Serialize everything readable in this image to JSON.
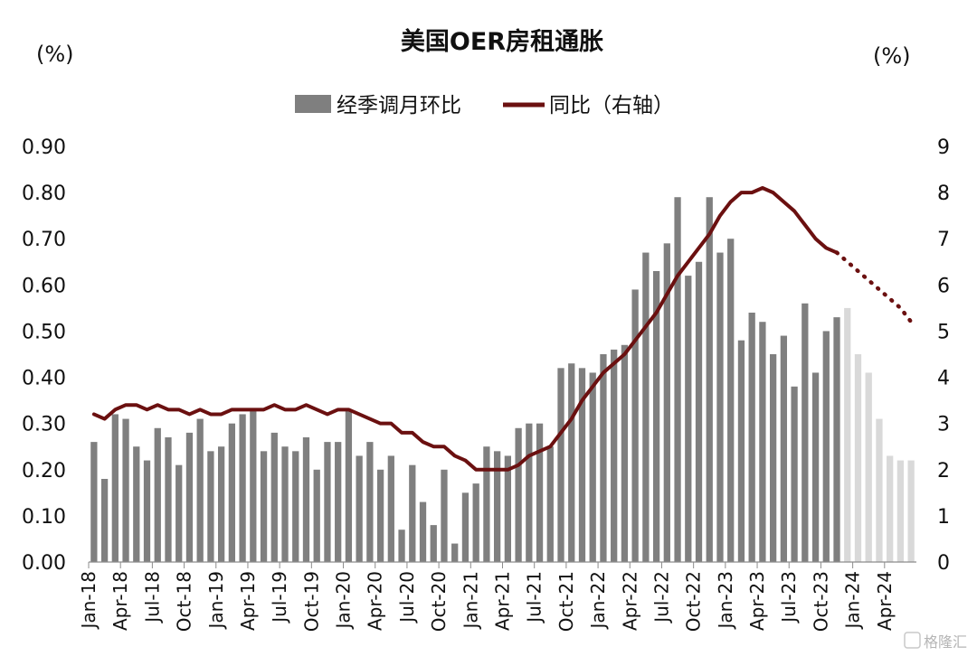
{
  "chart_data": {
    "type": "bar",
    "title": "美国OER房租通胀",
    "left_unit": "(%)",
    "right_unit": "(%)",
    "legend": {
      "bar_label": "经季调月环比",
      "line_label": "同比（右轴）"
    },
    "ylim_left": [
      0,
      0.9
    ],
    "yticks_left": [
      "0.00",
      "0.10",
      "0.20",
      "0.30",
      "0.40",
      "0.50",
      "0.60",
      "0.70",
      "0.80",
      "0.90"
    ],
    "ylim_right": [
      0,
      9
    ],
    "yticks_right": [
      "0",
      "1",
      "2",
      "3",
      "4",
      "5",
      "6",
      "7",
      "8",
      "9"
    ],
    "x_tick_labels": [
      "Jan-18",
      "Apr-18",
      "Jul-18",
      "Oct-18",
      "Jan-19",
      "Apr-19",
      "Jul-19",
      "Oct-19",
      "Jan-20",
      "Apr-20",
      "Jul-20",
      "Oct-20",
      "Jan-21",
      "Apr-21",
      "Jul-21",
      "Oct-21",
      "Jan-22",
      "Apr-22",
      "Jul-22",
      "Oct-22",
      "Jan-23",
      "Apr-23",
      "Jul-23",
      "Oct-23",
      "Jan-24",
      "Apr-24"
    ],
    "months": [
      "Jan-18",
      "Feb-18",
      "Mar-18",
      "Apr-18",
      "May-18",
      "Jun-18",
      "Jul-18",
      "Aug-18",
      "Sep-18",
      "Oct-18",
      "Nov-18",
      "Dec-18",
      "Jan-19",
      "Feb-19",
      "Mar-19",
      "Apr-19",
      "May-19",
      "Jun-19",
      "Jul-19",
      "Aug-19",
      "Sep-19",
      "Oct-19",
      "Nov-19",
      "Dec-19",
      "Jan-20",
      "Feb-20",
      "Mar-20",
      "Apr-20",
      "May-20",
      "Jun-20",
      "Jul-20",
      "Aug-20",
      "Sep-20",
      "Oct-20",
      "Nov-20",
      "Dec-20",
      "Jan-21",
      "Feb-21",
      "Mar-21",
      "Apr-21",
      "May-21",
      "Jun-21",
      "Jul-21",
      "Aug-21",
      "Sep-21",
      "Oct-21",
      "Nov-21",
      "Dec-21",
      "Jan-22",
      "Feb-22",
      "Mar-22",
      "Apr-22",
      "May-22",
      "Jun-22",
      "Jul-22",
      "Aug-22",
      "Sep-22",
      "Oct-22",
      "Nov-22",
      "Dec-22",
      "Jan-23",
      "Feb-23",
      "Mar-23",
      "Apr-23",
      "May-23",
      "Jun-23",
      "Jul-23",
      "Aug-23",
      "Sep-23",
      "Oct-23",
      "Nov-23",
      "Dec-23",
      "Jan-24",
      "Feb-24",
      "Mar-24",
      "Apr-24",
      "May-24",
      "Jun-24"
    ],
    "series": [
      {
        "name": "经季调月环比",
        "kind": "bar",
        "color": "#7f7f7f",
        "forecast_color": "#d9d9d9",
        "forecast_from_index": 71,
        "values": [
          0.26,
          0.18,
          0.32,
          0.31,
          0.25,
          0.22,
          0.29,
          0.27,
          0.21,
          0.28,
          0.31,
          0.24,
          0.25,
          0.3,
          0.32,
          0.33,
          0.24,
          0.28,
          0.25,
          0.24,
          0.27,
          0.2,
          0.26,
          0.26,
          0.33,
          0.23,
          0.26,
          0.2,
          0.23,
          0.07,
          0.21,
          0.13,
          0.08,
          0.2,
          0.04,
          0.15,
          0.17,
          0.25,
          0.24,
          0.23,
          0.29,
          0.3,
          0.3,
          0.25,
          0.42,
          0.43,
          0.42,
          0.41,
          0.45,
          0.46,
          0.47,
          0.59,
          0.67,
          0.63,
          0.69,
          0.79,
          0.62,
          0.65,
          0.79,
          0.67,
          0.7,
          0.48,
          0.54,
          0.52,
          0.45,
          0.49,
          0.38,
          0.56,
          0.41,
          0.5,
          0.53,
          0.55,
          0.45,
          0.41,
          0.31,
          0.23,
          0.22,
          0.22
        ]
      },
      {
        "name": "同比（右轴）",
        "kind": "line",
        "axis": "right",
        "color": "#6b1010",
        "actual_until_index": 70,
        "values": [
          3.2,
          3.1,
          3.3,
          3.4,
          3.4,
          3.3,
          3.4,
          3.3,
          3.3,
          3.2,
          3.3,
          3.2,
          3.2,
          3.3,
          3.3,
          3.3,
          3.3,
          3.4,
          3.3,
          3.3,
          3.4,
          3.3,
          3.2,
          3.3,
          3.3,
          3.2,
          3.1,
          3.0,
          3.0,
          2.8,
          2.8,
          2.6,
          2.5,
          2.5,
          2.3,
          2.2,
          2.0,
          2.0,
          2.0,
          2.0,
          2.1,
          2.3,
          2.4,
          2.5,
          2.8,
          3.1,
          3.5,
          3.8,
          4.1,
          4.3,
          4.5,
          4.8,
          5.1,
          5.4,
          5.8,
          6.2,
          6.5,
          6.8,
          7.1,
          7.5,
          7.8,
          8.0,
          8.0,
          8.1,
          8.0,
          7.8,
          7.6,
          7.3,
          7.0,
          6.8,
          6.7,
          6.5,
          6.3,
          6.1,
          5.9,
          5.7,
          5.5,
          5.2
        ]
      }
    ]
  },
  "watermark": "格隆汇"
}
